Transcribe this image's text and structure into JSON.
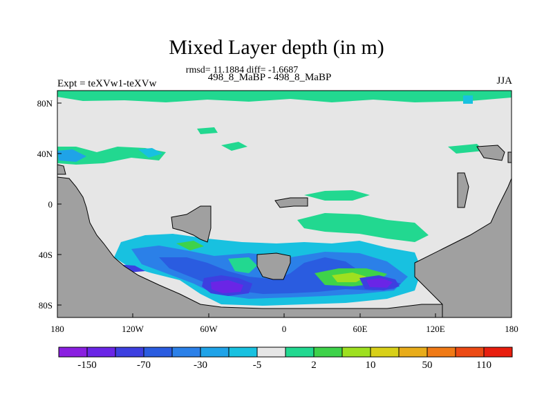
{
  "title": "Mixed Layer depth (in m)",
  "subtitle_stats": "rmsd= 11.1884 diff= -1.6687",
  "subtitle_runs": "498_8_MaBP - 498_8_MaBP",
  "left_label": "Expt = teXVw1-teXVw",
  "right_label": "JJA",
  "y_ticks": [
    "80N",
    "40N",
    "0",
    "40S",
    "80S"
  ],
  "x_ticks": [
    "180",
    "120W",
    "60W",
    "0",
    "60E",
    "120E",
    "180"
  ],
  "colorbar_labels": [
    "-150",
    "-70",
    "-30",
    "-5",
    "2",
    "10",
    "50",
    "110"
  ],
  "colorbar_colors": [
    "#8a1fe0",
    "#6a25e6",
    "#3d3fe0",
    "#2a5ce0",
    "#2b80e8",
    "#1fa3e8",
    "#18c1e0",
    "#e6e6e6",
    "#22d890",
    "#3ed24a",
    "#9ee020",
    "#d8d018",
    "#e8ac1a",
    "#f07a16",
    "#ec4a14",
    "#e81e0e"
  ],
  "colors": {
    "background": "#e6e6e6",
    "land": "#a0a0a0"
  }
}
